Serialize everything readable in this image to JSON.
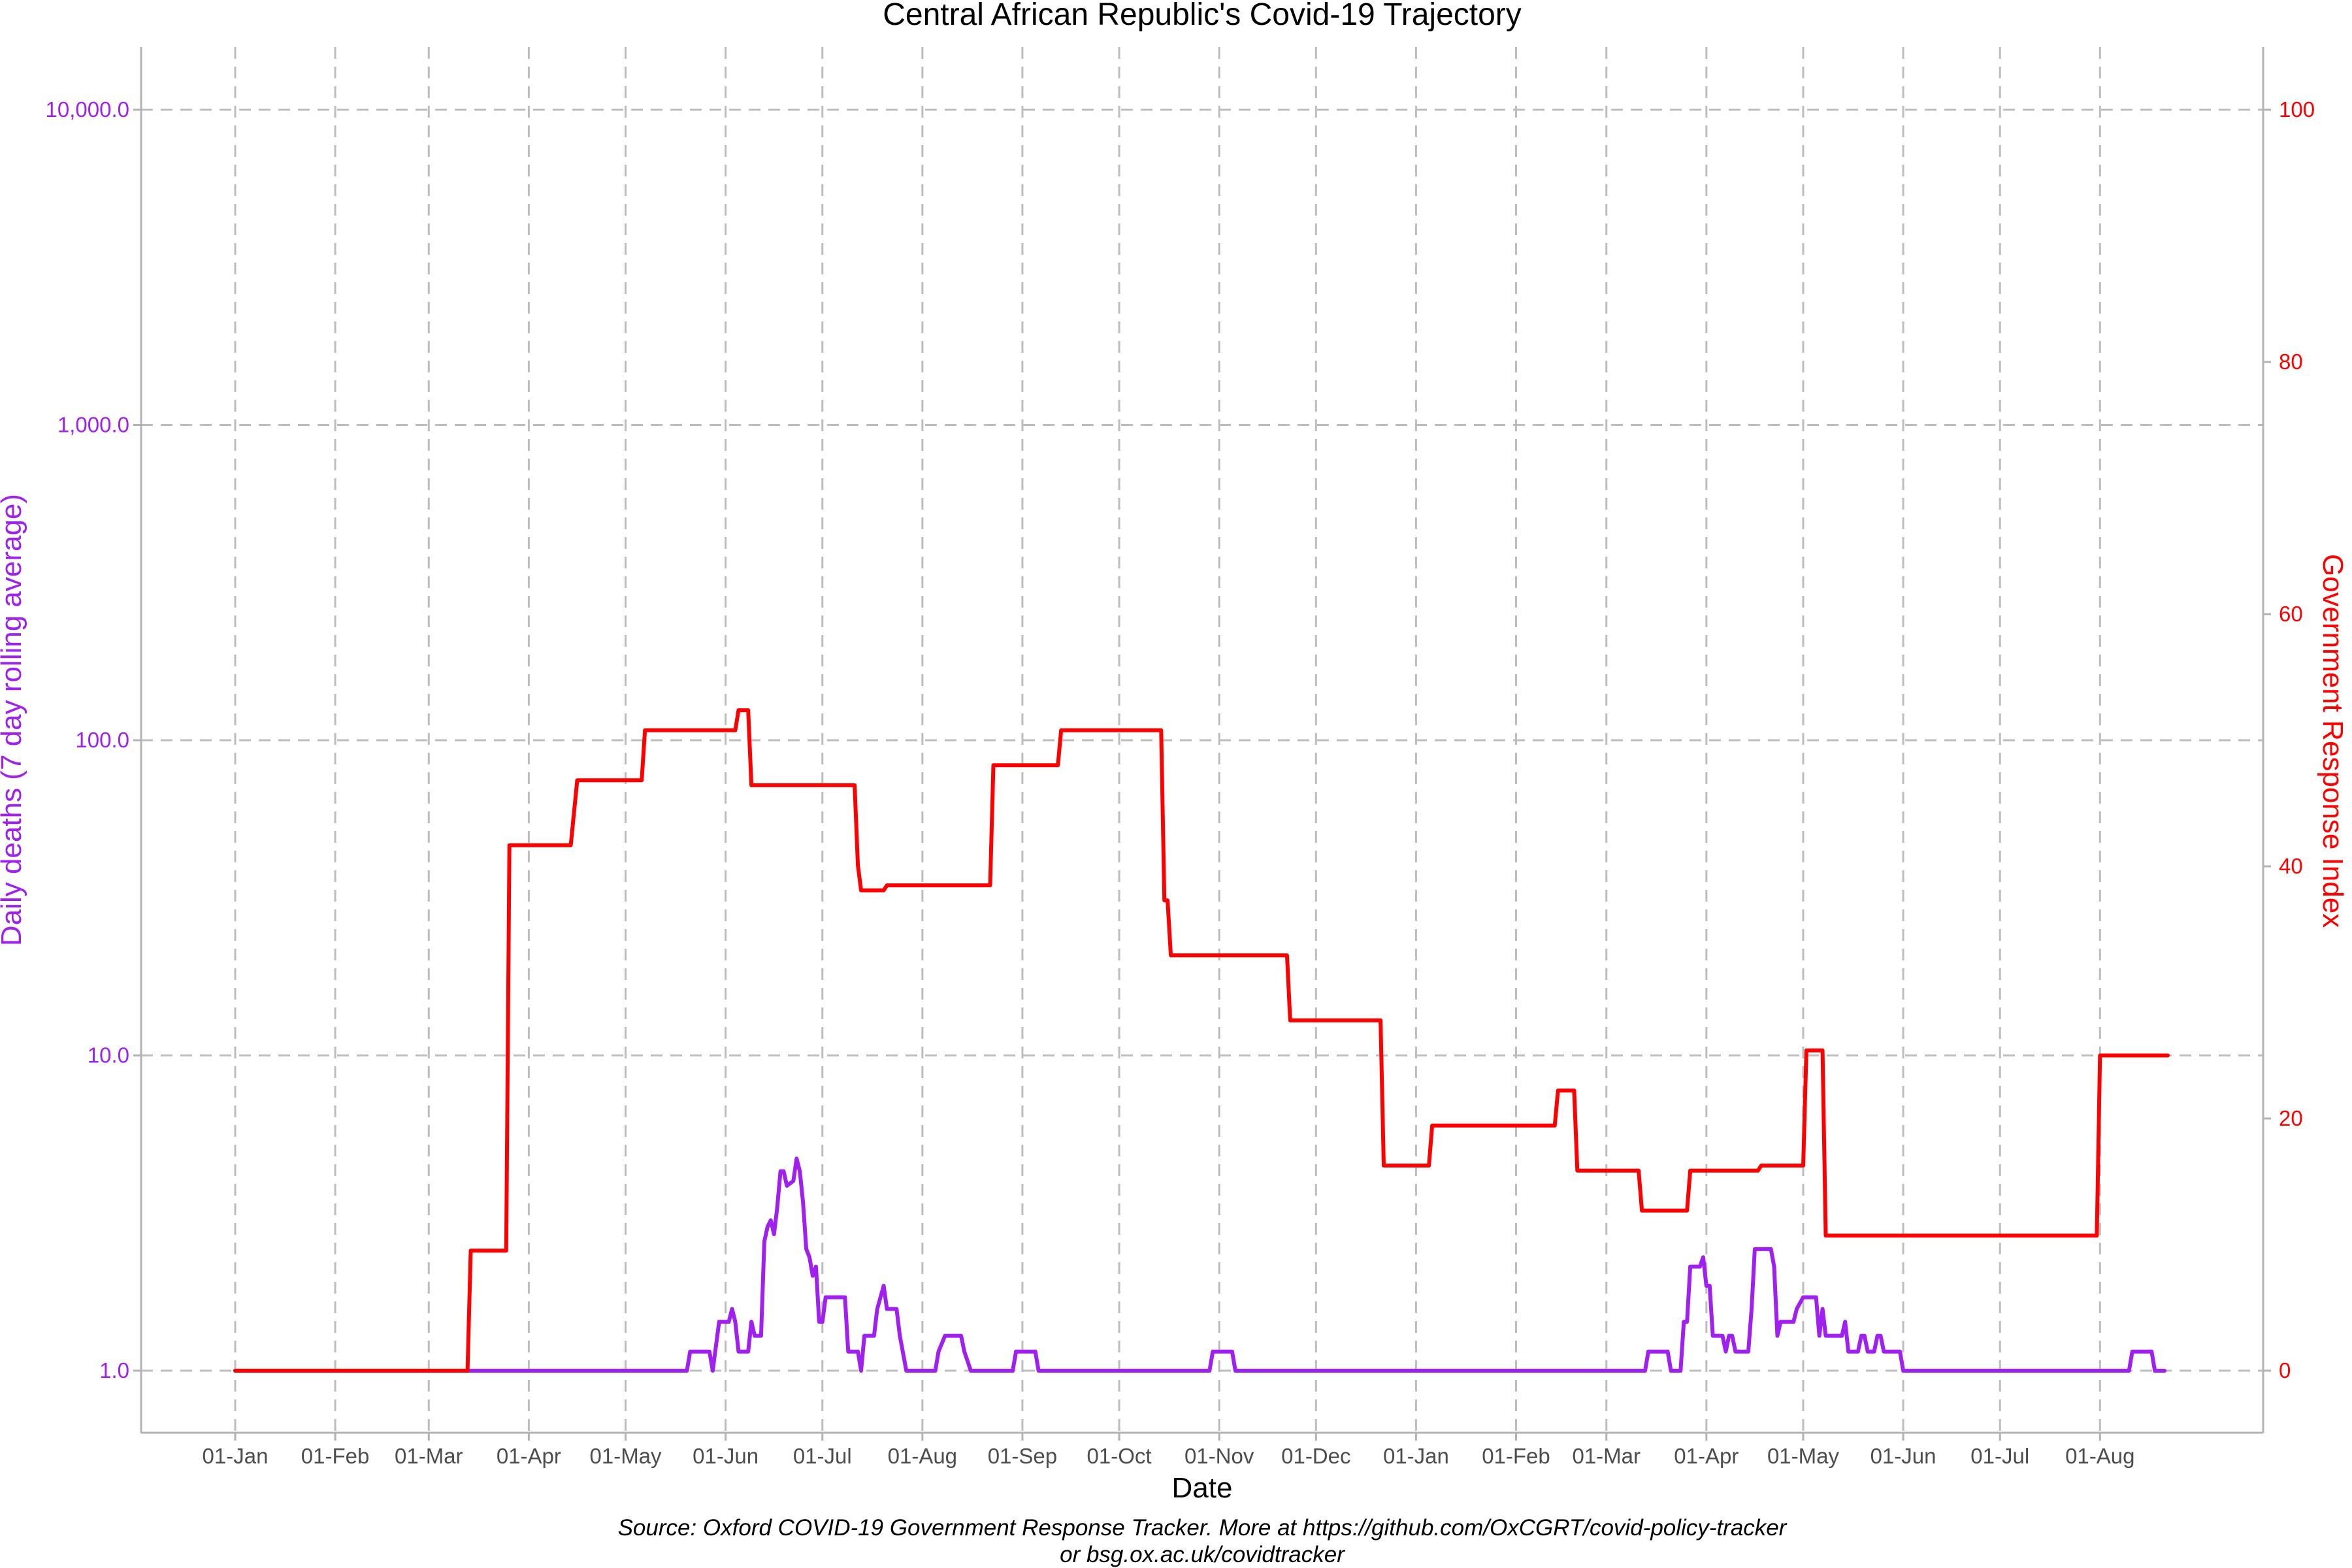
{
  "chart_data": {
    "type": "line",
    "title": "Central African Republic's Covid-19 Trajectory",
    "xlabel": "Date",
    "ylabel_left": "Daily deaths (7 day rolling average)",
    "ylabel_right": "Government Response Index",
    "caption_line1": "Source: Oxford COVID-19 Government Response Tracker. More at https://github.com/OxCGRT/covid-policy-tracker",
    "caption_line2": "or bsg.ox.ac.uk/covidtracker",
    "x_range": [
      "2020-01-01",
      "2021-08-22"
    ],
    "y_left_scale": "log10",
    "y_left_range": [
      1,
      10000
    ],
    "y_left_ticks": [
      {
        "value": 1,
        "label": "1.0"
      },
      {
        "value": 10,
        "label": "10.0"
      },
      {
        "value": 100,
        "label": "100.0"
      },
      {
        "value": 1000,
        "label": "1,000.0"
      },
      {
        "value": 10000,
        "label": "10,000.0"
      }
    ],
    "y_right_range": [
      0,
      100
    ],
    "y_right_ticks": [
      {
        "value": 0,
        "label": "0"
      },
      {
        "value": 20,
        "label": "20"
      },
      {
        "value": 40,
        "label": "40"
      },
      {
        "value": 60,
        "label": "60"
      },
      {
        "value": 80,
        "label": "80"
      },
      {
        "value": 100,
        "label": "100"
      }
    ],
    "x_ticks": [
      {
        "date": "2020-01-01",
        "label": "01-Jan"
      },
      {
        "date": "2020-02-01",
        "label": "01-Feb"
      },
      {
        "date": "2020-03-01",
        "label": "01-Mar"
      },
      {
        "date": "2020-04-01",
        "label": "01-Apr"
      },
      {
        "date": "2020-05-01",
        "label": "01-May"
      },
      {
        "date": "2020-06-01",
        "label": "01-Jun"
      },
      {
        "date": "2020-07-01",
        "label": "01-Jul"
      },
      {
        "date": "2020-08-01",
        "label": "01-Aug"
      },
      {
        "date": "2020-09-01",
        "label": "01-Sep"
      },
      {
        "date": "2020-10-01",
        "label": "01-Oct"
      },
      {
        "date": "2020-11-01",
        "label": "01-Nov"
      },
      {
        "date": "2020-12-01",
        "label": "01-Dec"
      },
      {
        "date": "2021-01-01",
        "label": "01-Jan"
      },
      {
        "date": "2021-02-01",
        "label": "01-Feb"
      },
      {
        "date": "2021-03-01",
        "label": "01-Mar"
      },
      {
        "date": "2021-04-01",
        "label": "01-Apr"
      },
      {
        "date": "2021-05-01",
        "label": "01-May"
      },
      {
        "date": "2021-06-01",
        "label": "01-Jun"
      },
      {
        "date": "2021-07-01",
        "label": "01-Jul"
      },
      {
        "date": "2021-08-01",
        "label": "01-Aug"
      }
    ],
    "grid": true,
    "colors": {
      "deaths": "#a020f0",
      "response": "#ff0000",
      "grid": "#bdbdbd",
      "axis": "#b3b3b3"
    },
    "series": [
      {
        "axis": "left",
        "points": [
          [
            "2020-01-01",
            1.0
          ],
          [
            "2020-05-20",
            1.0
          ],
          [
            "2020-05-21",
            1.15
          ],
          [
            "2020-05-27",
            1.15
          ],
          [
            "2020-05-28",
            1.0
          ],
          [
            "2020-05-30",
            1.43
          ],
          [
            "2020-06-02",
            1.43
          ],
          [
            "2020-06-03",
            1.57
          ],
          [
            "2020-06-04",
            1.43
          ],
          [
            "2020-06-05",
            1.15
          ],
          [
            "2020-06-08",
            1.15
          ],
          [
            "2020-06-09",
            1.43
          ],
          [
            "2020-06-10",
            1.29
          ],
          [
            "2020-06-12",
            1.29
          ],
          [
            "2020-06-13",
            2.57
          ],
          [
            "2020-06-14",
            2.86
          ],
          [
            "2020-06-15",
            3.0
          ],
          [
            "2020-06-16",
            2.71
          ],
          [
            "2020-06-17",
            3.29
          ],
          [
            "2020-06-18",
            4.29
          ],
          [
            "2020-06-19",
            4.29
          ],
          [
            "2020-06-20",
            3.86
          ],
          [
            "2020-06-22",
            4.0
          ],
          [
            "2020-06-23",
            4.71
          ],
          [
            "2020-06-24",
            4.29
          ],
          [
            "2020-06-25",
            3.43
          ],
          [
            "2020-06-26",
            2.43
          ],
          [
            "2020-06-27",
            2.29
          ],
          [
            "2020-06-28",
            2.0
          ],
          [
            "2020-06-29",
            2.14
          ],
          [
            "2020-06-30",
            1.43
          ],
          [
            "2020-07-01",
            1.43
          ],
          [
            "2020-07-02",
            1.71
          ],
          [
            "2020-07-08",
            1.71
          ],
          [
            "2020-07-09",
            1.15
          ],
          [
            "2020-07-12",
            1.15
          ],
          [
            "2020-07-13",
            1.0
          ],
          [
            "2020-07-14",
            1.29
          ],
          [
            "2020-07-17",
            1.29
          ],
          [
            "2020-07-18",
            1.57
          ],
          [
            "2020-07-20",
            1.86
          ],
          [
            "2020-07-21",
            1.57
          ],
          [
            "2020-07-24",
            1.57
          ],
          [
            "2020-07-25",
            1.29
          ],
          [
            "2020-07-27",
            1.0
          ],
          [
            "2020-08-05",
            1.0
          ],
          [
            "2020-08-06",
            1.15
          ],
          [
            "2020-08-08",
            1.29
          ],
          [
            "2020-08-13",
            1.29
          ],
          [
            "2020-08-14",
            1.15
          ],
          [
            "2020-08-16",
            1.0
          ],
          [
            "2020-08-29",
            1.0
          ],
          [
            "2020-08-30",
            1.15
          ],
          [
            "2020-09-05",
            1.15
          ],
          [
            "2020-09-06",
            1.0
          ],
          [
            "2020-10-29",
            1.0
          ],
          [
            "2020-10-30",
            1.15
          ],
          [
            "2020-11-05",
            1.15
          ],
          [
            "2020-11-06",
            1.0
          ],
          [
            "2021-03-13",
            1.0
          ],
          [
            "2021-03-14",
            1.15
          ],
          [
            "2021-03-20",
            1.15
          ],
          [
            "2021-03-21",
            1.0
          ],
          [
            "2021-03-24",
            1.0
          ],
          [
            "2021-03-25",
            1.43
          ],
          [
            "2021-03-26",
            1.43
          ],
          [
            "2021-03-27",
            2.14
          ],
          [
            "2021-03-30",
            2.14
          ],
          [
            "2021-03-31",
            2.29
          ],
          [
            "2021-04-01",
            1.86
          ],
          [
            "2021-04-02",
            1.86
          ],
          [
            "2021-04-03",
            1.29
          ],
          [
            "2021-04-06",
            1.29
          ],
          [
            "2021-04-07",
            1.15
          ],
          [
            "2021-04-08",
            1.29
          ],
          [
            "2021-04-09",
            1.29
          ],
          [
            "2021-04-10",
            1.15
          ],
          [
            "2021-04-14",
            1.15
          ],
          [
            "2021-04-15",
            1.57
          ],
          [
            "2021-04-16",
            2.43
          ],
          [
            "2021-04-21",
            2.43
          ],
          [
            "2021-04-22",
            2.14
          ],
          [
            "2021-04-23",
            1.29
          ],
          [
            "2021-04-24",
            1.43
          ],
          [
            "2021-04-28",
            1.43
          ],
          [
            "2021-04-29",
            1.57
          ],
          [
            "2021-05-01",
            1.71
          ],
          [
            "2021-05-05",
            1.71
          ],
          [
            "2021-05-06",
            1.29
          ],
          [
            "2021-05-07",
            1.57
          ],
          [
            "2021-05-08",
            1.29
          ],
          [
            "2021-05-13",
            1.29
          ],
          [
            "2021-05-14",
            1.43
          ],
          [
            "2021-05-15",
            1.15
          ],
          [
            "2021-05-18",
            1.15
          ],
          [
            "2021-05-19",
            1.29
          ],
          [
            "2021-05-20",
            1.29
          ],
          [
            "2021-05-21",
            1.15
          ],
          [
            "2021-05-23",
            1.15
          ],
          [
            "2021-05-24",
            1.29
          ],
          [
            "2021-05-25",
            1.29
          ],
          [
            "2021-05-26",
            1.15
          ],
          [
            "2021-05-31",
            1.15
          ],
          [
            "2021-06-01",
            1.0
          ],
          [
            "2021-08-10",
            1.0
          ],
          [
            "2021-08-11",
            1.15
          ],
          [
            "2021-08-17",
            1.15
          ],
          [
            "2021-08-18",
            1.0
          ],
          [
            "2021-08-21",
            1.0
          ]
        ]
      },
      {
        "axis": "right",
        "points": [
          [
            "2020-01-01",
            0
          ],
          [
            "2020-03-13",
            0
          ],
          [
            "2020-03-14",
            9.52
          ],
          [
            "2020-03-25",
            9.52
          ],
          [
            "2020-03-26",
            41.67
          ],
          [
            "2020-04-14",
            41.67
          ],
          [
            "2020-04-16",
            46.83
          ],
          [
            "2020-05-06",
            46.83
          ],
          [
            "2020-05-07",
            50.79
          ],
          [
            "2020-06-04",
            50.79
          ],
          [
            "2020-06-05",
            52.38
          ],
          [
            "2020-06-08",
            52.38
          ],
          [
            "2020-06-09",
            46.43
          ],
          [
            "2020-07-11",
            46.43
          ],
          [
            "2020-07-12",
            40.08
          ],
          [
            "2020-07-13",
            38.1
          ],
          [
            "2020-07-20",
            38.1
          ],
          [
            "2020-07-21",
            38.49
          ],
          [
            "2020-08-22",
            38.49
          ],
          [
            "2020-08-23",
            48.02
          ],
          [
            "2020-09-12",
            48.02
          ],
          [
            "2020-09-13",
            50.79
          ],
          [
            "2020-10-14",
            50.79
          ],
          [
            "2020-10-15",
            37.3
          ],
          [
            "2020-10-16",
            37.3
          ],
          [
            "2020-10-17",
            32.94
          ],
          [
            "2020-11-22",
            32.94
          ],
          [
            "2020-11-23",
            27.78
          ],
          [
            "2020-12-21",
            27.78
          ],
          [
            "2020-12-22",
            16.27
          ],
          [
            "2021-01-05",
            16.27
          ],
          [
            "2021-01-06",
            19.44
          ],
          [
            "2021-02-13",
            19.44
          ],
          [
            "2021-02-14",
            22.22
          ],
          [
            "2021-02-19",
            22.22
          ],
          [
            "2021-02-20",
            15.87
          ],
          [
            "2021-03-11",
            15.87
          ],
          [
            "2021-03-12",
            12.7
          ],
          [
            "2021-03-26",
            12.7
          ],
          [
            "2021-03-27",
            15.87
          ],
          [
            "2021-04-17",
            15.87
          ],
          [
            "2021-04-18",
            16.27
          ],
          [
            "2021-05-01",
            16.27
          ],
          [
            "2021-05-02",
            25.4
          ],
          [
            "2021-05-07",
            25.4
          ],
          [
            "2021-05-08",
            10.71
          ],
          [
            "2021-07-31",
            10.71
          ],
          [
            "2021-08-01",
            25.0
          ],
          [
            "2021-08-22",
            25.0
          ]
        ]
      }
    ]
  }
}
